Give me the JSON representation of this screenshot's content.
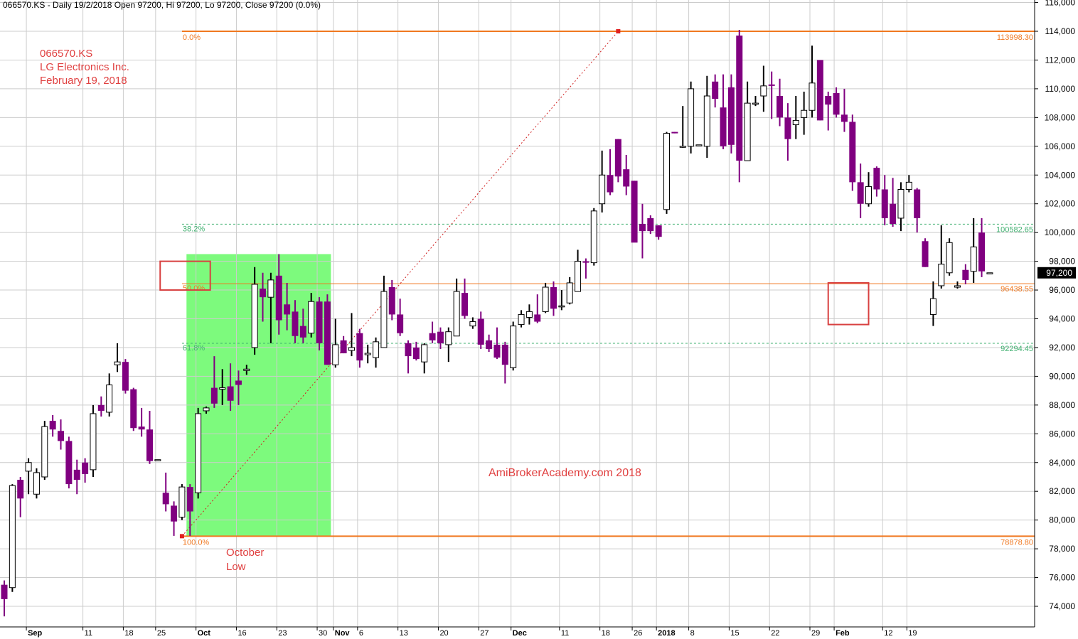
{
  "header": {
    "text": "066570.KS - Daily 19/2/2018 Open 97200, Hi 97200, Lo 97200, Close 97200 (0.0%)"
  },
  "annotations": {
    "ticker": "066570.KS",
    "company": "LG Electronics Inc.",
    "date": "February 19, 2018",
    "watermark": "AmiBrokerAcademy.com  2018",
    "october_low_line1": "October",
    "october_low_line2": "Low"
  },
  "colors": {
    "down_candle": "#800080",
    "up_candle": "#ffffff",
    "fib_orange": "#f07820",
    "fib_green": "#40b070",
    "shade_green": "#7dfa7d",
    "annotation_red": "#e04040",
    "grid": "#cccccc"
  },
  "chart_data": {
    "type": "candlestick",
    "ylim": [
      72800,
      116000
    ],
    "y_ticks": [
      74000,
      76000,
      78000,
      80000,
      82000,
      84000,
      86000,
      88000,
      90000,
      92000,
      94000,
      96000,
      98000,
      100000,
      102000,
      104000,
      106000,
      108000,
      110000,
      112000,
      114000,
      116000
    ],
    "y_tick_labels": [
      "74,000",
      "76,000",
      "78,000",
      "80,000",
      "82,000",
      "84,000",
      "86,000",
      "88,000",
      "90,000",
      "92,000",
      "94,000",
      "96,000",
      "98,000",
      "100,000",
      "102,000",
      "104,000",
      "106,000",
      "108,000",
      "110,000",
      "112,000",
      "114,000",
      "116,000"
    ],
    "x_labels": [
      {
        "i": 3,
        "label": "Sep",
        "bold": true
      },
      {
        "i": 10,
        "label": "11",
        "bold": false
      },
      {
        "i": 15,
        "label": "18",
        "bold": false
      },
      {
        "i": 19,
        "label": "25",
        "bold": false
      },
      {
        "i": 24,
        "label": "Oct",
        "bold": true
      },
      {
        "i": 29,
        "label": "16",
        "bold": false
      },
      {
        "i": 34,
        "label": "23",
        "bold": false
      },
      {
        "i": 39,
        "label": "30",
        "bold": false
      },
      {
        "i": 41,
        "label": "Nov",
        "bold": true
      },
      {
        "i": 44,
        "label": "6",
        "bold": false
      },
      {
        "i": 49,
        "label": "13",
        "bold": false
      },
      {
        "i": 54,
        "label": "20",
        "bold": false
      },
      {
        "i": 59,
        "label": "27",
        "bold": false
      },
      {
        "i": 63,
        "label": "Dec",
        "bold": true
      },
      {
        "i": 69,
        "label": "11",
        "bold": false
      },
      {
        "i": 74,
        "label": "18",
        "bold": false
      },
      {
        "i": 78,
        "label": "26",
        "bold": false
      },
      {
        "i": 81,
        "label": "2018",
        "bold": true
      },
      {
        "i": 85,
        "label": "8",
        "bold": false
      },
      {
        "i": 90,
        "label": "15",
        "bold": false
      },
      {
        "i": 95,
        "label": "22",
        "bold": false
      },
      {
        "i": 100,
        "label": "29",
        "bold": false
      },
      {
        "i": 103,
        "label": "Feb",
        "bold": true
      },
      {
        "i": 109,
        "label": "12",
        "bold": false
      },
      {
        "i": 112,
        "label": "19",
        "bold": false
      }
    ],
    "last_price_label": "97,200",
    "fib_levels": [
      {
        "pct": "0.0%",
        "value": 113998.3,
        "value_label": "113998.30",
        "kind": "solid"
      },
      {
        "pct": "38.2%",
        "value": 100582.65,
        "value_label": "100582.65",
        "kind": "dashed"
      },
      {
        "pct": "50.0%",
        "value": 96438.55,
        "value_label": "96438.55",
        "kind": "thin"
      },
      {
        "pct": "61.8%",
        "value": 92294.45,
        "value_label": "92294.45",
        "kind": "dashed"
      },
      {
        "pct": "100.0%",
        "value": 78878.8,
        "value_label": "78878.80",
        "kind": "solid"
      }
    ],
    "fib_anchors": {
      "low_i": 22,
      "low_value": 78878.8,
      "high_i": 76,
      "high_value": 113998.3
    },
    "shaded_range": {
      "start_i": 23,
      "end_i": 40,
      "low": 78900,
      "high": 98500
    },
    "box_50": {
      "start_i": 19.3,
      "end_i": 25.5,
      "low": 96000,
      "high": 98000
    },
    "box_feb": {
      "start_i": 102,
      "end_i": 107,
      "low": 93600,
      "high": 96500
    },
    "candles": [
      {
        "o": 75500,
        "h": 75800,
        "l": 73300,
        "c": 74500
      },
      {
        "o": 75300,
        "h": 82500,
        "l": 75000,
        "c": 82400
      },
      {
        "o": 82800,
        "h": 83000,
        "l": 80200,
        "c": 81500
      },
      {
        "o": 83400,
        "h": 84300,
        "l": 81800,
        "c": 84000
      },
      {
        "o": 81800,
        "h": 83600,
        "l": 81500,
        "c": 83300
      },
      {
        "o": 83000,
        "h": 86900,
        "l": 82800,
        "c": 86500
      },
      {
        "o": 86900,
        "h": 87300,
        "l": 85800,
        "c": 86300
      },
      {
        "o": 86200,
        "h": 87000,
        "l": 84900,
        "c": 85500
      },
      {
        "o": 85500,
        "h": 85800,
        "l": 82200,
        "c": 82500
      },
      {
        "o": 83500,
        "h": 84200,
        "l": 81800,
        "c": 82800
      },
      {
        "o": 84000,
        "h": 84300,
        "l": 82600,
        "c": 83200
      },
      {
        "o": 83500,
        "h": 88000,
        "l": 83000,
        "c": 87400
      },
      {
        "o": 88000,
        "h": 88600,
        "l": 87200,
        "c": 87600
      },
      {
        "o": 87500,
        "h": 90200,
        "l": 87200,
        "c": 89400
      },
      {
        "o": 90800,
        "h": 92300,
        "l": 90300,
        "c": 91000
      },
      {
        "o": 91000,
        "h": 91200,
        "l": 88800,
        "c": 89000
      },
      {
        "o": 89100,
        "h": 89200,
        "l": 86200,
        "c": 86400
      },
      {
        "o": 86500,
        "h": 87800,
        "l": 85800,
        "c": 86300
      },
      {
        "o": 86300,
        "h": 87600,
        "l": 83900,
        "c": 84100
      },
      {
        "o": 84200,
        "h": 84200,
        "l": 84200,
        "c": 84200
      },
      {
        "o": 81900,
        "h": 83300,
        "l": 80600,
        "c": 81100
      },
      {
        "o": 81000,
        "h": 81300,
        "l": 78900,
        "c": 79900
      },
      {
        "o": 80200,
        "h": 82500,
        "l": 80000,
        "c": 82300
      },
      {
        "o": 82300,
        "h": 82500,
        "l": 78900,
        "c": 80600
      },
      {
        "o": 81900,
        "h": 87800,
        "l": 81500,
        "c": 87400
      },
      {
        "o": 87600,
        "h": 87900,
        "l": 87400,
        "c": 87800
      },
      {
        "o": 89200,
        "h": 91400,
        "l": 87800,
        "c": 88100
      },
      {
        "o": 89100,
        "h": 90500,
        "l": 88000,
        "c": 89200
      },
      {
        "o": 89300,
        "h": 90900,
        "l": 87600,
        "c": 88300
      },
      {
        "o": 89700,
        "h": 90400,
        "l": 88000,
        "c": 89400
      },
      {
        "o": 90400,
        "h": 90800,
        "l": 90100,
        "c": 90500
      },
      {
        "o": 92000,
        "h": 97600,
        "l": 91500,
        "c": 96400
      },
      {
        "o": 96100,
        "h": 97200,
        "l": 93800,
        "c": 95500
      },
      {
        "o": 95500,
        "h": 97200,
        "l": 92300,
        "c": 96700
      },
      {
        "o": 97000,
        "h": 98500,
        "l": 92900,
        "c": 93900
      },
      {
        "o": 95000,
        "h": 96500,
        "l": 93200,
        "c": 94300
      },
      {
        "o": 94500,
        "h": 95300,
        "l": 92300,
        "c": 92800
      },
      {
        "o": 93500,
        "h": 94700,
        "l": 92300,
        "c": 92700
      },
      {
        "o": 93000,
        "h": 95800,
        "l": 92700,
        "c": 95200
      },
      {
        "o": 95200,
        "h": 95500,
        "l": 91800,
        "c": 92300
      },
      {
        "o": 95200,
        "h": 95700,
        "l": 90800,
        "c": 90800
      },
      {
        "o": 90800,
        "h": 94000,
        "l": 90600,
        "c": 92200
      },
      {
        "o": 92500,
        "h": 92800,
        "l": 91600,
        "c": 91600
      },
      {
        "o": 91800,
        "h": 94400,
        "l": 91400,
        "c": 92000
      },
      {
        "o": 93000,
        "h": 93300,
        "l": 90600,
        "c": 91100
      },
      {
        "o": 91500,
        "h": 92200,
        "l": 90900,
        "c": 91600
      },
      {
        "o": 91300,
        "h": 92700,
        "l": 90600,
        "c": 92400
      },
      {
        "o": 92000,
        "h": 97000,
        "l": 92000,
        "c": 95900
      },
      {
        "o": 96200,
        "h": 96700,
        "l": 93900,
        "c": 94300
      },
      {
        "o": 94300,
        "h": 95400,
        "l": 92800,
        "c": 93000
      },
      {
        "o": 92300,
        "h": 92500,
        "l": 90200,
        "c": 91400
      },
      {
        "o": 92000,
        "h": 92400,
        "l": 91100,
        "c": 91200
      },
      {
        "o": 91000,
        "h": 92300,
        "l": 90200,
        "c": 92200
      },
      {
        "o": 93000,
        "h": 93800,
        "l": 92300,
        "c": 92500
      },
      {
        "o": 93100,
        "h": 93400,
        "l": 91900,
        "c": 92300
      },
      {
        "o": 92200,
        "h": 93400,
        "l": 91000,
        "c": 93100
      },
      {
        "o": 92800,
        "h": 96800,
        "l": 92800,
        "c": 95900
      },
      {
        "o": 95800,
        "h": 96800,
        "l": 94000,
        "c": 94200
      },
      {
        "o": 93500,
        "h": 94100,
        "l": 93300,
        "c": 93800
      },
      {
        "o": 94000,
        "h": 94500,
        "l": 91900,
        "c": 92200
      },
      {
        "o": 92500,
        "h": 92900,
        "l": 91700,
        "c": 91900
      },
      {
        "o": 92200,
        "h": 93400,
        "l": 91200,
        "c": 91300
      },
      {
        "o": 92200,
        "h": 92400,
        "l": 89500,
        "c": 90800
      },
      {
        "o": 90600,
        "h": 93800,
        "l": 90400,
        "c": 93500
      },
      {
        "o": 93600,
        "h": 94600,
        "l": 93400,
        "c": 94300
      },
      {
        "o": 94100,
        "h": 95000,
        "l": 93600,
        "c": 94500
      },
      {
        "o": 94300,
        "h": 95700,
        "l": 93700,
        "c": 93800
      },
      {
        "o": 94500,
        "h": 96500,
        "l": 94400,
        "c": 96200
      },
      {
        "o": 96200,
        "h": 96600,
        "l": 94200,
        "c": 94700
      },
      {
        "o": 94900,
        "h": 96000,
        "l": 94600,
        "c": 94900
      },
      {
        "o": 95100,
        "h": 96900,
        "l": 95000,
        "c": 96500
      },
      {
        "o": 95900,
        "h": 98800,
        "l": 95900,
        "c": 98000
      },
      {
        "o": 98000,
        "h": 98200,
        "l": 96800,
        "c": 97900
      },
      {
        "o": 97900,
        "h": 101700,
        "l": 97700,
        "c": 101500
      },
      {
        "o": 102000,
        "h": 105700,
        "l": 101400,
        "c": 104000
      },
      {
        "o": 104000,
        "h": 105800,
        "l": 102600,
        "c": 102800
      },
      {
        "o": 106500,
        "h": 106500,
        "l": 103500,
        "c": 103900
      },
      {
        "o": 104400,
        "h": 105400,
        "l": 102600,
        "c": 103200
      },
      {
        "o": 103600,
        "h": 103600,
        "l": 99500,
        "c": 99300
      },
      {
        "o": 100600,
        "h": 102000,
        "l": 98200,
        "c": 100100
      },
      {
        "o": 101000,
        "h": 101200,
        "l": 99900,
        "c": 100100
      },
      {
        "o": 100500,
        "h": 100500,
        "l": 99500,
        "c": 99700
      },
      {
        "o": 101600,
        "h": 107000,
        "l": 101300,
        "c": 106900
      },
      {
        "o": 107000,
        "h": 107000,
        "l": 106900,
        "c": 106900
      },
      {
        "o": 106000,
        "h": 108800,
        "l": 105900,
        "c": 106000
      },
      {
        "o": 106000,
        "h": 110500,
        "l": 105500,
        "c": 110000
      },
      {
        "o": 106100,
        "h": 106100,
        "l": 106100,
        "c": 106100
      },
      {
        "o": 106000,
        "h": 110900,
        "l": 105200,
        "c": 109500
      },
      {
        "o": 110500,
        "h": 111000,
        "l": 108700,
        "c": 109300
      },
      {
        "o": 108700,
        "h": 111000,
        "l": 105800,
        "c": 106000
      },
      {
        "o": 110100,
        "h": 111000,
        "l": 105500,
        "c": 106100
      },
      {
        "o": 113700,
        "h": 114100,
        "l": 103500,
        "c": 105000
      },
      {
        "o": 105000,
        "h": 110500,
        "l": 105000,
        "c": 109000
      },
      {
        "o": 109000,
        "h": 109500,
        "l": 108800,
        "c": 109000
      },
      {
        "o": 109500,
        "h": 111600,
        "l": 108400,
        "c": 110200
      },
      {
        "o": 110300,
        "h": 111200,
        "l": 107900,
        "c": 110200
      },
      {
        "o": 109500,
        "h": 110700,
        "l": 107400,
        "c": 108000
      },
      {
        "o": 108000,
        "h": 109000,
        "l": 105000,
        "c": 106500
      },
      {
        "o": 107500,
        "h": 109500,
        "l": 106500,
        "c": 107800
      },
      {
        "o": 108000,
        "h": 109800,
        "l": 106800,
        "c": 108500
      },
      {
        "o": 108500,
        "h": 113000,
        "l": 108000,
        "c": 110400
      },
      {
        "o": 112000,
        "h": 112000,
        "l": 107800,
        "c": 107800
      },
      {
        "o": 109500,
        "h": 109800,
        "l": 107100,
        "c": 108900
      },
      {
        "o": 109700,
        "h": 110100,
        "l": 108000,
        "c": 108200
      },
      {
        "o": 108200,
        "h": 110000,
        "l": 107000,
        "c": 107700
      },
      {
        "o": 107700,
        "h": 108200,
        "l": 102900,
        "c": 103500
      },
      {
        "o": 103500,
        "h": 104800,
        "l": 101000,
        "c": 102000
      },
      {
        "o": 102000,
        "h": 104200,
        "l": 101800,
        "c": 103200
      },
      {
        "o": 104500,
        "h": 104600,
        "l": 102500,
        "c": 103000
      },
      {
        "o": 103000,
        "h": 104000,
        "l": 100500,
        "c": 101000
      },
      {
        "o": 102000,
        "h": 103800,
        "l": 100400,
        "c": 100600
      },
      {
        "o": 101000,
        "h": 103500,
        "l": 100100,
        "c": 103000
      },
      {
        "o": 103000,
        "h": 104000,
        "l": 102800,
        "c": 103500
      },
      {
        "o": 103000,
        "h": 103100,
        "l": 100000,
        "c": 101000
      },
      {
        "o": 99400,
        "h": 99600,
        "l": 97600,
        "c": 97600
      },
      {
        "o": 94300,
        "h": 96600,
        "l": 93500,
        "c": 95400
      },
      {
        "o": 96300,
        "h": 100500,
        "l": 96100,
        "c": 97800
      },
      {
        "o": 97200,
        "h": 99600,
        "l": 97000,
        "c": 99300
      },
      {
        "o": 96200,
        "h": 96600,
        "l": 96100,
        "c": 96300
      },
      {
        "o": 97400,
        "h": 97800,
        "l": 96400,
        "c": 96700
      },
      {
        "o": 97300,
        "h": 101000,
        "l": 96500,
        "c": 99000
      },
      {
        "o": 100000,
        "h": 101000,
        "l": 96900,
        "c": 97300
      },
      {
        "o": 97200,
        "h": 97200,
        "l": 97200,
        "c": 97200
      }
    ]
  }
}
